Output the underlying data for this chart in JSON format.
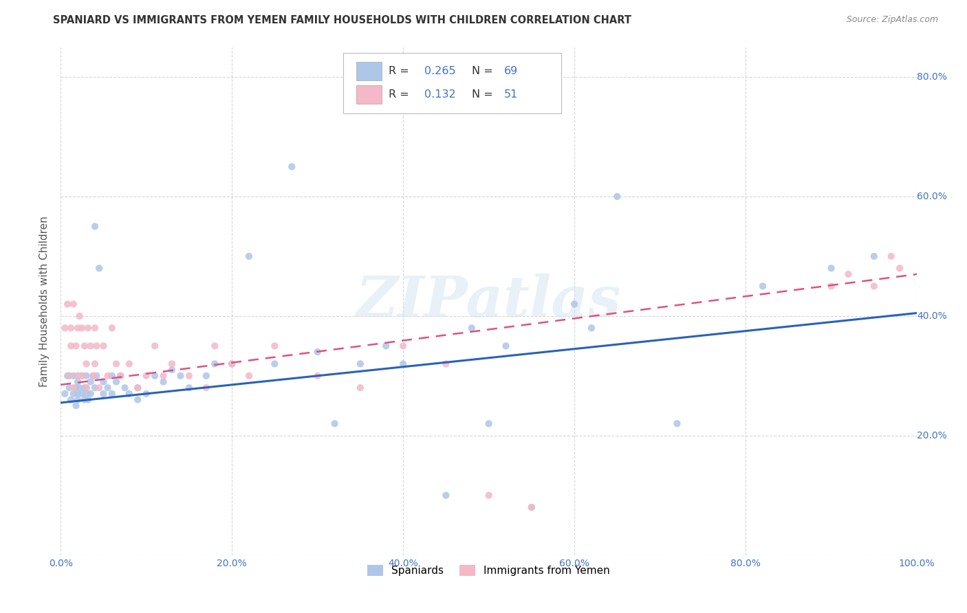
{
  "title": "SPANIARD VS IMMIGRANTS FROM YEMEN FAMILY HOUSEHOLDS WITH CHILDREN CORRELATION CHART",
  "source": "Source: ZipAtlas.com",
  "ylabel": "Family Households with Children",
  "xlim": [
    0.0,
    1.0
  ],
  "ylim": [
    0.0,
    0.85
  ],
  "xtick_vals": [
    0.0,
    0.2,
    0.4,
    0.6,
    0.8,
    1.0
  ],
  "xtick_labels": [
    "0.0%",
    "20.0%",
    "40.0%",
    "60.0%",
    "80.0%",
    "100.0%"
  ],
  "ytick_vals": [
    0.0,
    0.2,
    0.4,
    0.6,
    0.8
  ],
  "ytick_labels": [
    "",
    "20.0%",
    "40.0%",
    "60.0%",
    "80.0%"
  ],
  "legend_sub1": "Spaniards",
  "legend_sub2": "Immigrants from Yemen",
  "R1": 0.265,
  "N1": 69,
  "R2": 0.132,
  "N2": 51,
  "color_blue": "#aec6e8",
  "color_pink": "#f4b8c8",
  "color_blue_line": "#2962b8",
  "color_pink_line": "#e05080",
  "color_axis_label": "#4472c4",
  "watermark": "ZIPatlas",
  "background_color": "#ffffff",
  "grid_color": "#cccccc",
  "blue_line_start_y": 0.255,
  "blue_line_end_y": 0.405,
  "pink_line_start_y": 0.285,
  "pink_line_end_y": 0.47,
  "spaniards_x": [
    0.005,
    0.008,
    0.01,
    0.01,
    0.012,
    0.015,
    0.015,
    0.018,
    0.018,
    0.02,
    0.02,
    0.02,
    0.02,
    0.022,
    0.025,
    0.025,
    0.028,
    0.028,
    0.03,
    0.03,
    0.03,
    0.032,
    0.035,
    0.035,
    0.038,
    0.04,
    0.04,
    0.042,
    0.045,
    0.05,
    0.05,
    0.055,
    0.06,
    0.06,
    0.065,
    0.07,
    0.075,
    0.08,
    0.09,
    0.09,
    0.1,
    0.11,
    0.12,
    0.13,
    0.14,
    0.15,
    0.17,
    0.18,
    0.2,
    0.22,
    0.25,
    0.27,
    0.3,
    0.32,
    0.35,
    0.38,
    0.4,
    0.45,
    0.48,
    0.5,
    0.52,
    0.55,
    0.6,
    0.62,
    0.65,
    0.72,
    0.82,
    0.9,
    0.95
  ],
  "spaniards_y": [
    0.27,
    0.3,
    0.3,
    0.28,
    0.26,
    0.3,
    0.27,
    0.28,
    0.25,
    0.29,
    0.27,
    0.3,
    0.26,
    0.28,
    0.27,
    0.3,
    0.28,
    0.26,
    0.3,
    0.27,
    0.28,
    0.26,
    0.29,
    0.27,
    0.3,
    0.28,
    0.55,
    0.3,
    0.48,
    0.27,
    0.29,
    0.28,
    0.3,
    0.27,
    0.29,
    0.3,
    0.28,
    0.27,
    0.26,
    0.28,
    0.27,
    0.3,
    0.29,
    0.31,
    0.3,
    0.28,
    0.3,
    0.32,
    0.32,
    0.5,
    0.32,
    0.65,
    0.34,
    0.22,
    0.32,
    0.35,
    0.32,
    0.1,
    0.38,
    0.22,
    0.35,
    0.08,
    0.42,
    0.38,
    0.6,
    0.22,
    0.45,
    0.48,
    0.5
  ],
  "yemen_x": [
    0.005,
    0.008,
    0.01,
    0.012,
    0.012,
    0.015,
    0.015,
    0.018,
    0.02,
    0.02,
    0.022,
    0.025,
    0.025,
    0.028,
    0.03,
    0.03,
    0.032,
    0.035,
    0.038,
    0.04,
    0.04,
    0.042,
    0.045,
    0.05,
    0.055,
    0.06,
    0.065,
    0.07,
    0.08,
    0.09,
    0.1,
    0.11,
    0.12,
    0.13,
    0.15,
    0.17,
    0.18,
    0.2,
    0.22,
    0.25,
    0.3,
    0.35,
    0.4,
    0.45,
    0.5,
    0.55,
    0.9,
    0.92,
    0.95,
    0.97,
    0.98
  ],
  "yemen_y": [
    0.38,
    0.42,
    0.3,
    0.38,
    0.35,
    0.42,
    0.28,
    0.35,
    0.3,
    0.38,
    0.4,
    0.3,
    0.38,
    0.35,
    0.28,
    0.32,
    0.38,
    0.35,
    0.3,
    0.38,
    0.32,
    0.35,
    0.28,
    0.35,
    0.3,
    0.38,
    0.32,
    0.3,
    0.32,
    0.28,
    0.3,
    0.35,
    0.3,
    0.32,
    0.3,
    0.28,
    0.35,
    0.32,
    0.3,
    0.35,
    0.3,
    0.28,
    0.35,
    0.32,
    0.1,
    0.08,
    0.45,
    0.47,
    0.45,
    0.5,
    0.48
  ]
}
